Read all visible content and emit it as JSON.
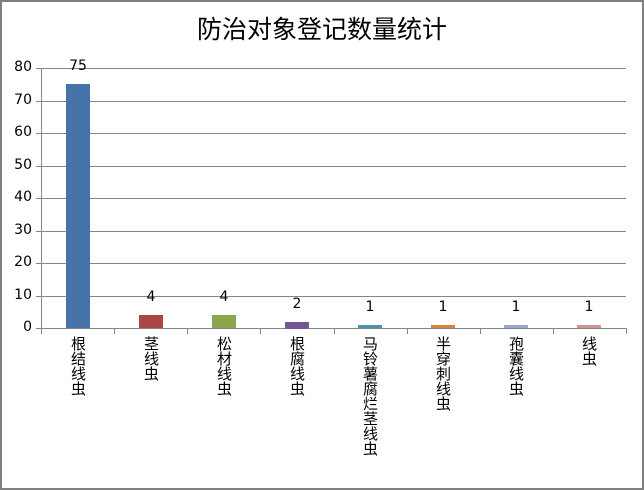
{
  "chart_data": {
    "type": "bar",
    "title": "防治对象登记数量统计",
    "xlabel": "",
    "ylabel": "",
    "ylim": [
      0,
      80
    ],
    "yticks": [
      0,
      10,
      20,
      30,
      40,
      50,
      60,
      70,
      80
    ],
    "grid": true,
    "legend": null,
    "categories": [
      "根结线虫",
      "茎线虫",
      "松材线虫",
      "根腐线虫",
      "马铃薯腐烂茎线虫",
      "半穿刺线虫",
      "孢囊线虫",
      "线虫"
    ],
    "values": [
      75,
      4,
      4,
      2,
      1,
      1,
      1,
      1
    ],
    "colors": [
      "#4572a7",
      "#aa4643",
      "#89a54e",
      "#71588f",
      "#4198af",
      "#db843d",
      "#93a9cf",
      "#d19392"
    ],
    "data_labels": [
      "75",
      "4",
      "4",
      "2",
      "1",
      "1",
      "1",
      "1"
    ]
  }
}
